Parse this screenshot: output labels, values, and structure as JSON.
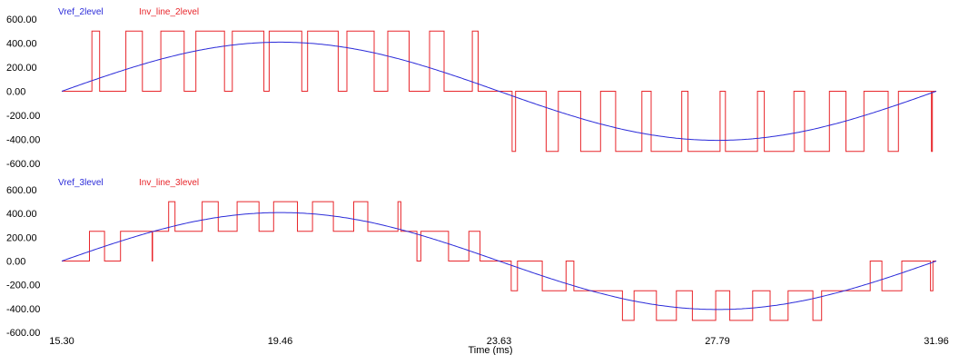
{
  "chart_data": [
    {
      "type": "line",
      "title": "",
      "xlabel": "",
      "ylabel": "",
      "xlim": [
        15.3,
        31.96
      ],
      "ylim": [
        -600,
        600
      ],
      "y_ticks": [
        "600.00",
        "400.00",
        "200.00",
        "0.00",
        "-200.00",
        "-400.00",
        "-600.00"
      ],
      "grid": false,
      "legend": "top-left",
      "series": [
        {
          "name": "Vref_2level",
          "color": "#2b2bd9",
          "kind": "sine",
          "amplitude": 408,
          "x_start": 15.3,
          "x_end": 31.96
        },
        {
          "name": "Inv_line_2level",
          "color": "#e8262b",
          "kind": "pwm_2level",
          "levels": [
            -500,
            0,
            500
          ]
        }
      ]
    },
    {
      "type": "line",
      "title": "",
      "xlabel": "Time (ms)",
      "ylabel": "",
      "xlim": [
        15.3,
        31.96
      ],
      "ylim": [
        -600,
        600
      ],
      "x_ticks": [
        "15.30",
        "19.46",
        "23.63",
        "27.79",
        "31.96"
      ],
      "y_ticks": [
        "600.00",
        "400.00",
        "200.00",
        "0.00",
        "-200.00",
        "-400.00",
        "-600.00"
      ],
      "grid": false,
      "legend": "top-left",
      "series": [
        {
          "name": "Vref_3level",
          "color": "#2b2bd9",
          "kind": "sine",
          "amplitude": 408,
          "x_start": 15.3,
          "x_end": 31.96
        },
        {
          "name": "Inv_line_3level",
          "color": "#e8262b",
          "kind": "pwm_3level",
          "levels": [
            -500,
            -250,
            0,
            250,
            500
          ]
        }
      ]
    }
  ]
}
